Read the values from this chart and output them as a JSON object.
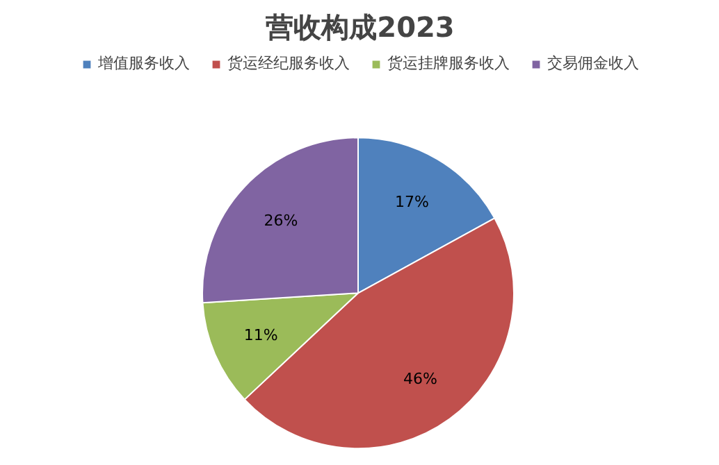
{
  "chart_data": {
    "type": "pie",
    "title": "营收构成2023",
    "categories": [
      "增值服务收入",
      "货运经纪服务收入",
      "货运挂牌服务收入",
      "交易佣金收入"
    ],
    "values": [
      17,
      46,
      11,
      26
    ],
    "colors": [
      "#4f81bd",
      "#c0504d",
      "#9bbb59",
      "#8064a2"
    ],
    "value_labels": [
      "17%",
      "46%",
      "11%",
      "26%"
    ],
    "legend": "top"
  }
}
